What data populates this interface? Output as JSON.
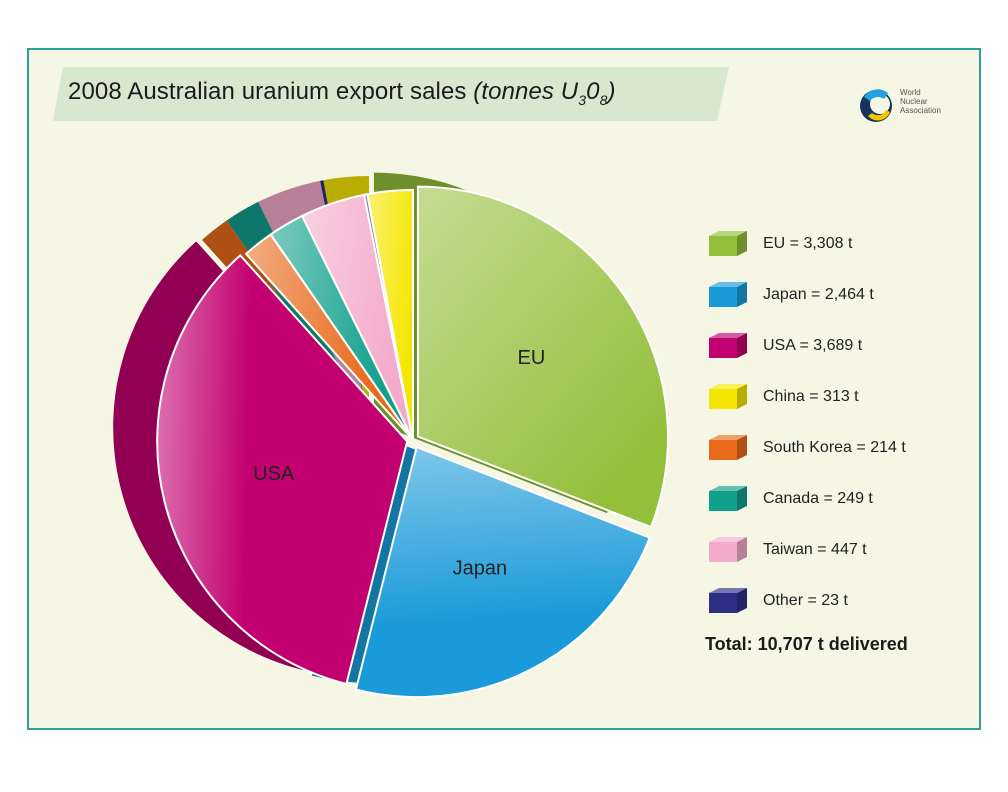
{
  "title": {
    "main": "2008 Australian uranium export sales",
    "unit_prefix": "(tonnes U",
    "unit_sub_1": "3",
    "unit_mid": "0",
    "unit_sub_2": "8",
    "unit_suffix": ")"
  },
  "logo": {
    "line1": "World",
    "line2": "Nuclear",
    "line3": "Association",
    "icon": "wna-logo-icon"
  },
  "legend": [
    {
      "label": "EU = 3,308 t",
      "color": "#93bf3a",
      "icon": "cube-icon"
    },
    {
      "label": "Japan = 2,464 t",
      "color": "#1a9ad8",
      "icon": "cube-icon"
    },
    {
      "label": "USA = 3,689 t",
      "color": "#c2006f",
      "icon": "cube-icon"
    },
    {
      "label": "China = 313 t",
      "color": "#f5e600",
      "icon": "cube-icon"
    },
    {
      "label": "South Korea = 214 t",
      "color": "#e8691a",
      "icon": "cube-icon"
    },
    {
      "label": "Canada = 249 t",
      "color": "#11a08c",
      "icon": "cube-icon"
    },
    {
      "label": "Taiwan = 447 t",
      "color": "#f4aacb",
      "icon": "cube-icon"
    },
    {
      "label": "Other = 23 t",
      "color": "#2d2f87",
      "icon": "cube-icon"
    }
  ],
  "total": "Total: 10,707 t delivered",
  "chart_data": {
    "type": "pie",
    "title": "2008 Australian uranium export sales (tonnes U308)",
    "categories": [
      "EU",
      "Japan",
      "USA",
      "China",
      "South Korea",
      "Canada",
      "Taiwan",
      "Other"
    ],
    "values": [
      3308,
      2464,
      3689,
      313,
      214,
      249,
      447,
      23
    ],
    "slice_labels": [
      "EU",
      "Japan",
      "USA",
      "",
      "",
      "",
      "",
      ""
    ],
    "colors": [
      "#93bf3a",
      "#1a9ad8",
      "#c2006f",
      "#f5e600",
      "#e8691a",
      "#11a08c",
      "#f4aacb",
      "#2d2f87"
    ],
    "exploded": [
      "EU",
      "Japan",
      "USA"
    ],
    "units": "t",
    "legend_position": "right"
  }
}
